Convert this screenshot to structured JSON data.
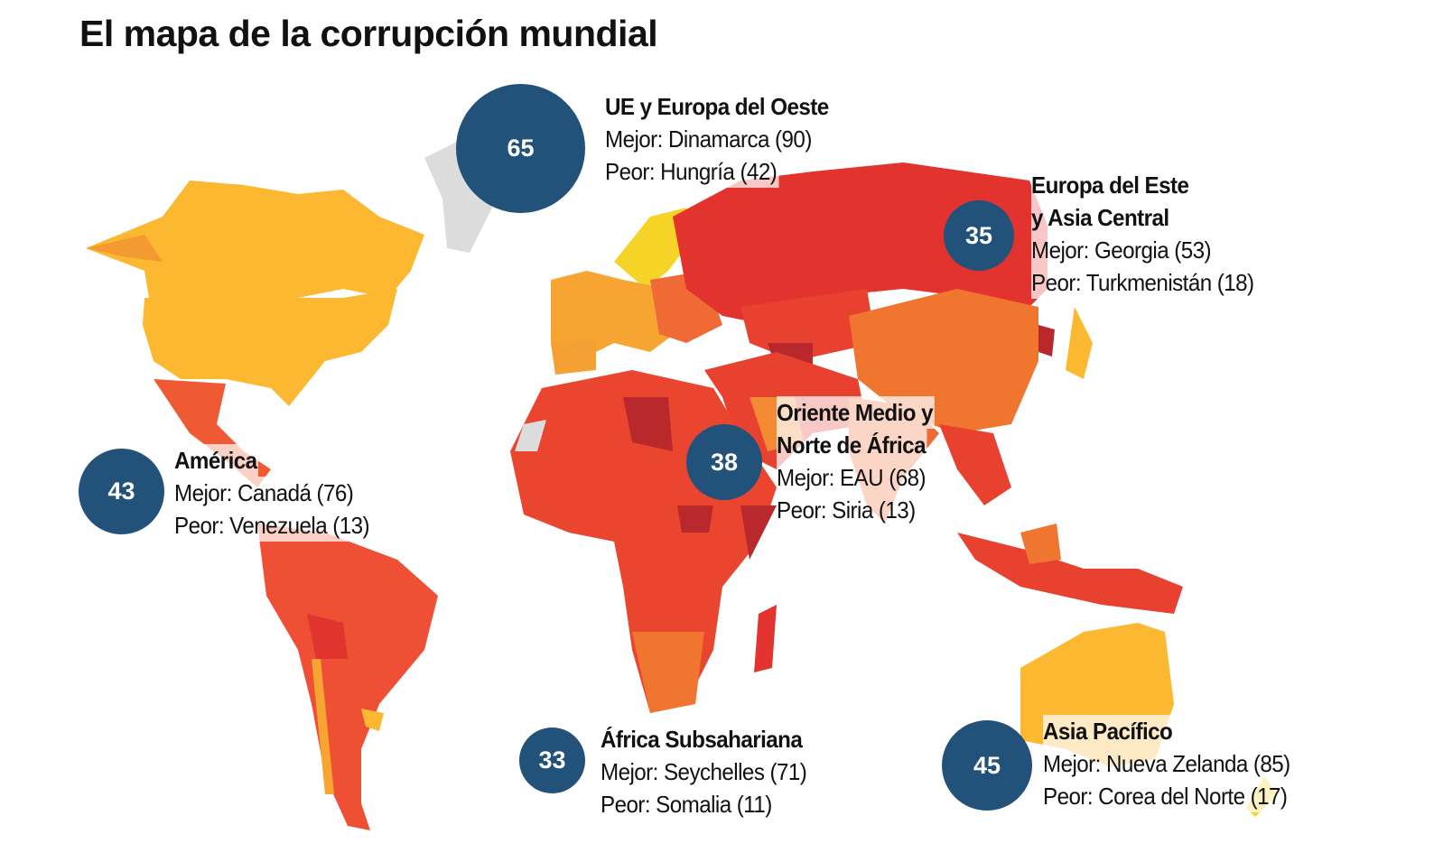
{
  "title": "El mapa de la corrupción mundial",
  "colors": {
    "bubble": "#22527a",
    "yellow": "#f6d327",
    "amber": "#fbb830",
    "orange": "#f38a34",
    "orange_red": "#ef6a35",
    "red": "#e8412f",
    "dark_red": "#b8282d",
    "no_data": "#dcdcdc"
  },
  "regions": [
    {
      "score": "65",
      "title": "UE y Europa del Oeste",
      "best": "Mejor: Dinamarca (90)",
      "worst": "Peor: Hungría (42)"
    },
    {
      "score": "35",
      "title": "Europa del Este",
      "title2": "y Asia Central",
      "best": "Mejor: Georgia (53)",
      "worst": "Peor: Turkmenistán (18)"
    },
    {
      "score": "38",
      "title": "Oriente Medio y",
      "title2": "Norte de África",
      "best": "Mejor: EAU (68)",
      "worst": "Peor: Siria (13)"
    },
    {
      "score": "43",
      "title": "América",
      "best": "Mejor: Canadá (76)",
      "worst": "Peor: Venezuela (13)"
    },
    {
      "score": "33",
      "title": "África Subsahariana",
      "best": "Mejor: Seychelles (71)",
      "worst": "Peor: Somalia (11)"
    },
    {
      "score": "45",
      "title": "Asia Pacífico",
      "best": "Mejor: Nueva Zelanda (85)",
      "worst": "Peor: Corea del Norte (17)"
    }
  ]
}
